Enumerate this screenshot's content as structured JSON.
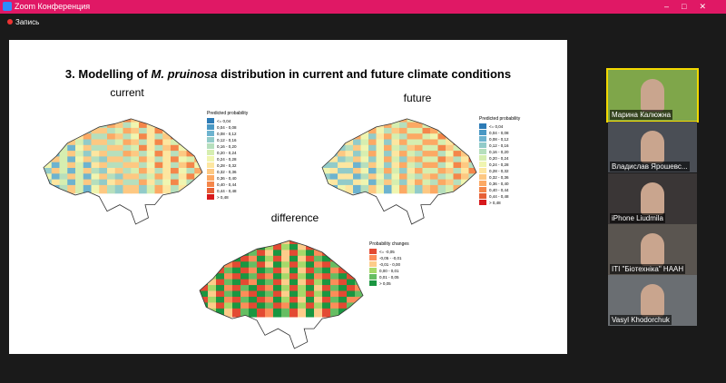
{
  "window": {
    "title": "Zoom Конференция",
    "recording": "Запись"
  },
  "slide": {
    "title_prefix": "3. Modelling of ",
    "title_italic": "M. pruinosa",
    "title_suffix": " distribution in current and future climate conditions",
    "maps": [
      {
        "label": "current",
        "legend_title": "Predicted probability",
        "legend": [
          {
            "label": "<= 0,04",
            "color": "#2c7bb6"
          },
          {
            "label": "0,04 - 0,08",
            "color": "#4a98c4"
          },
          {
            "label": "0,08 - 0,12",
            "color": "#6db3cf"
          },
          {
            "label": "0,12 - 0,16",
            "color": "#92cbc9"
          },
          {
            "label": "0,16 - 0,20",
            "color": "#b6dfbd"
          },
          {
            "label": "0,20 - 0,24",
            "color": "#d6eeb0"
          },
          {
            "label": "0,24 - 0,28",
            "color": "#f0f5b0"
          },
          {
            "label": "0,28 - 0,32",
            "color": "#fde6a0"
          },
          {
            "label": "0,32 - 0,36",
            "color": "#fdc882"
          },
          {
            "label": "0,36 - 0,40",
            "color": "#fca964"
          },
          {
            "label": "0,40 - 0,44",
            "color": "#f4864a"
          },
          {
            "label": "0,44 - 0,48",
            "color": "#e65f36"
          },
          {
            "label": "> 0,48",
            "color": "#d7191c"
          }
        ]
      },
      {
        "label": "future",
        "legend_title": "Predicted probability",
        "legend": [
          {
            "label": "<= 0,04",
            "color": "#2c7bb6"
          },
          {
            "label": "0,04 - 0,08",
            "color": "#4a98c4"
          },
          {
            "label": "0,08 - 0,12",
            "color": "#6db3cf"
          },
          {
            "label": "0,12 - 0,16",
            "color": "#92cbc9"
          },
          {
            "label": "0,16 - 0,20",
            "color": "#b6dfbd"
          },
          {
            "label": "0,20 - 0,24",
            "color": "#d6eeb0"
          },
          {
            "label": "0,24 - 0,28",
            "color": "#f0f5b0"
          },
          {
            "label": "0,28 - 0,32",
            "color": "#fde6a0"
          },
          {
            "label": "0,32 - 0,36",
            "color": "#fdc882"
          },
          {
            "label": "0,36 - 0,40",
            "color": "#fca964"
          },
          {
            "label": "0,40 - 0,44",
            "color": "#f4864a"
          },
          {
            "label": "0,44 - 0,48",
            "color": "#e65f36"
          },
          {
            "label": "> 0,48",
            "color": "#d7191c"
          }
        ]
      },
      {
        "label": "difference",
        "legend_title": "Probability changes",
        "legend": [
          {
            "label": "<= -0,05",
            "color": "#e34a33"
          },
          {
            "label": "-0,05 - -0,01",
            "color": "#fc8d59"
          },
          {
            "label": "-0,01 - 0,00",
            "color": "#fdcc8a"
          },
          {
            "label": "0,00 - 0,01",
            "color": "#a6d96a"
          },
          {
            "label": "0,01 - 0,05",
            "color": "#66bd63"
          },
          {
            "label": "> 0,05",
            "color": "#1a9641"
          }
        ]
      }
    ]
  },
  "participants": [
    {
      "name": "Марина Калюжна"
    },
    {
      "name": "Владислав Ярошевс..."
    },
    {
      "name": "iPhone Liudmila"
    },
    {
      "name": "ITI \"Біотехніка\" НААН"
    },
    {
      "name": "Vasyl Khodorchuk"
    }
  ]
}
